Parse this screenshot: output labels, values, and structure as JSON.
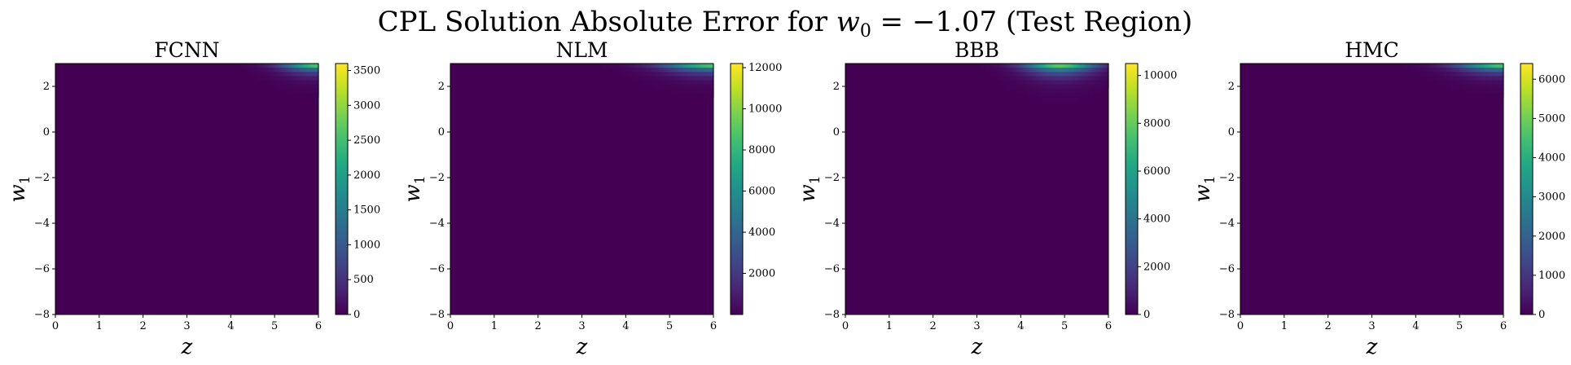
{
  "figure": {
    "title_prefix": "CPL Solution Absolute Error for ",
    "title_math": "w",
    "title_sub": "0",
    "title_suffix": " = −1.07 (Test Region)"
  },
  "chart_data": [
    {
      "type": "heatmap",
      "title": "FCNN",
      "xlabel": "z",
      "ylabel": "w",
      "ylabel_sub": "1",
      "xlim": [
        0,
        6
      ],
      "ylim": [
        -8,
        3
      ],
      "xticks": [
        0,
        1,
        2,
        3,
        4,
        5,
        6
      ],
      "yticks": [
        2,
        0,
        -2,
        -4,
        -6,
        -8
      ],
      "colormap": "viridis",
      "cmin": 0,
      "cmax": 3600,
      "cbar_ticks": [
        0,
        500,
        1000,
        1500,
        2000,
        2500,
        3000,
        3500
      ],
      "hotspot": {
        "z_center": 6.0,
        "z_spread": 0.8,
        "w1_depth": 0.25,
        "peak": 3600
      }
    },
    {
      "type": "heatmap",
      "title": "NLM",
      "xlabel": "z",
      "ylabel": "w",
      "ylabel_sub": "1",
      "xlim": [
        0,
        6
      ],
      "ylim": [
        -8,
        3
      ],
      "xticks": [
        0,
        1,
        2,
        3,
        4,
        5,
        6
      ],
      "yticks": [
        2,
        0,
        -2,
        -4,
        -6,
        -8
      ],
      "colormap": "viridis",
      "cmin": 0,
      "cmax": 12200,
      "cbar_ticks": [
        2000,
        4000,
        6000,
        8000,
        10000,
        12000
      ],
      "hotspot": {
        "z_center": 6.0,
        "z_spread": 1.1,
        "w1_depth": 0.25,
        "peak": 12200
      }
    },
    {
      "type": "heatmap",
      "title": "BBB",
      "xlabel": "z",
      "ylabel": "w",
      "ylabel_sub": "1",
      "xlim": [
        0,
        6
      ],
      "ylim": [
        -8,
        3
      ],
      "xticks": [
        0,
        1,
        2,
        3,
        4,
        5,
        6
      ],
      "yticks": [
        2,
        0,
        -2,
        -4,
        -6,
        -8
      ],
      "colormap": "viridis",
      "cmin": 0,
      "cmax": 10500,
      "cbar_ticks": [
        0,
        2000,
        4000,
        6000,
        8000,
        10000
      ],
      "hotspot": {
        "z_center": 4.9,
        "z_spread": 0.8,
        "w1_depth": 0.3,
        "peak": 10500
      }
    },
    {
      "type": "heatmap",
      "title": "HMC",
      "xlabel": "z",
      "ylabel": "w",
      "ylabel_sub": "1",
      "xlim": [
        0,
        6
      ],
      "ylim": [
        -8,
        3
      ],
      "xticks": [
        0,
        1,
        2,
        3,
        4,
        5,
        6
      ],
      "yticks": [
        2,
        0,
        -2,
        -4,
        -6,
        -8
      ],
      "colormap": "viridis",
      "cmin": 0,
      "cmax": 6400,
      "cbar_ticks": [
        0,
        1000,
        2000,
        3000,
        4000,
        5000,
        6000
      ],
      "hotspot": {
        "z_center": 6.0,
        "z_spread": 1.0,
        "w1_depth": 0.25,
        "peak": 6400
      }
    }
  ]
}
